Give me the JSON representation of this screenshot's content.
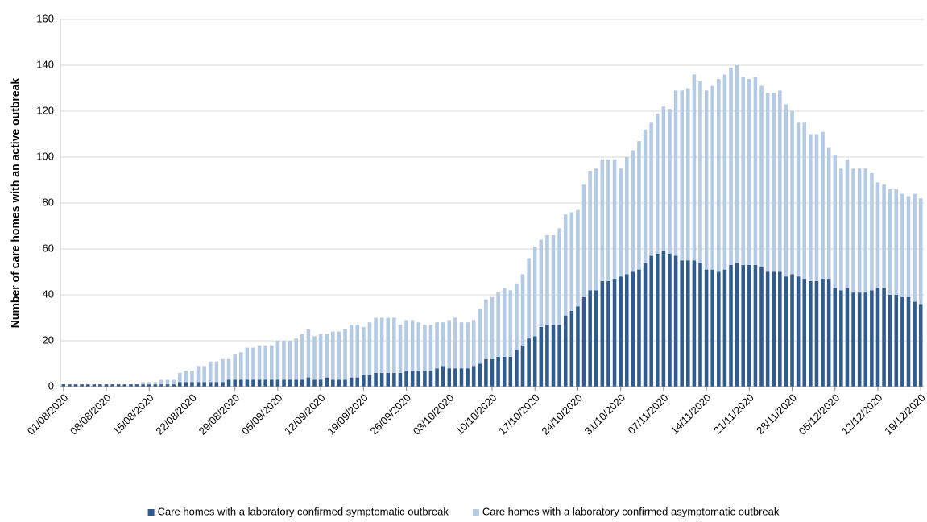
{
  "chart_data": {
    "type": "stacked-bar",
    "y_label": "Number of care homes with an active outbreak",
    "categories": [
      "01/08/2020",
      null,
      null,
      null,
      null,
      null,
      null,
      "08/08/2020",
      null,
      null,
      null,
      null,
      null,
      null,
      "15/08/2020",
      null,
      null,
      null,
      null,
      null,
      null,
      "22/08/2020",
      null,
      null,
      null,
      null,
      null,
      null,
      "29/08/2020",
      null,
      null,
      null,
      null,
      null,
      null,
      "05/09/2020",
      null,
      null,
      null,
      null,
      null,
      null,
      "12/09/2020",
      null,
      null,
      null,
      null,
      null,
      null,
      "19/09/2020",
      null,
      null,
      null,
      null,
      null,
      null,
      "26/09/2020",
      null,
      null,
      null,
      null,
      null,
      null,
      "03/10/2020",
      null,
      null,
      null,
      null,
      null,
      null,
      "10/10/2020",
      null,
      null,
      null,
      null,
      null,
      null,
      "17/10/2020",
      null,
      null,
      null,
      null,
      null,
      null,
      "24/10/2020",
      null,
      null,
      null,
      null,
      null,
      null,
      "31/10/2020",
      null,
      null,
      null,
      null,
      null,
      null,
      "07/11/2020",
      null,
      null,
      null,
      null,
      null,
      null,
      "14/11/2020",
      null,
      null,
      null,
      null,
      null,
      null,
      "21/11/2020",
      null,
      null,
      null,
      null,
      null,
      null,
      "28/11/2020",
      null,
      null,
      null,
      null,
      null,
      null,
      "05/12/2020",
      null,
      null,
      null,
      null,
      null,
      null,
      "12/12/2020",
      null,
      null,
      null,
      null,
      null,
      null,
      "19/12/2020"
    ],
    "series": [
      {
        "name": "Care homes with a laboratory confirmed symptomatic outbreak",
        "color": "#2f5b8e",
        "values": [
          1,
          1,
          1,
          1,
          1,
          1,
          1,
          1,
          1,
          1,
          1,
          1,
          1,
          1,
          1,
          1,
          1,
          1,
          1,
          2,
          2,
          2,
          2,
          2,
          2,
          2,
          2,
          3,
          3,
          3,
          3,
          3,
          3,
          3,
          3,
          3,
          3,
          3,
          3,
          3,
          4,
          3,
          3,
          4,
          3,
          3,
          3,
          4,
          4,
          5,
          5,
          6,
          6,
          6,
          6,
          6,
          7,
          7,
          7,
          7,
          7,
          8,
          9,
          8,
          8,
          8,
          8,
          9,
          10,
          12,
          12,
          13,
          13,
          13,
          16,
          18,
          21,
          22,
          26,
          27,
          27,
          27,
          31,
          33,
          35,
          39,
          42,
          42,
          46,
          46,
          47,
          48,
          49,
          50,
          51,
          54,
          57,
          58,
          59,
          58,
          57,
          55,
          55,
          55,
          54,
          51,
          51,
          50,
          51,
          53,
          54,
          53,
          53,
          53,
          52,
          50,
          50,
          50,
          48,
          49,
          48,
          47,
          46,
          46,
          47,
          47,
          43,
          42,
          43,
          41,
          41,
          41,
          42,
          43,
          43,
          40,
          40,
          39,
          39,
          37,
          36
        ]
      },
      {
        "name": "Care homes with a laboratory confirmed asymptomatic outbreak",
        "color": "#b5cae3",
        "values": [
          0,
          0,
          0,
          0,
          0,
          0,
          0,
          0,
          0,
          0,
          0,
          0,
          0,
          1,
          1,
          1,
          2,
          2,
          2,
          4,
          5,
          5,
          7,
          7,
          9,
          9,
          10,
          9,
          11,
          12,
          14,
          14,
          15,
          15,
          15,
          17,
          17,
          17,
          18,
          20,
          21,
          19,
          20,
          19,
          21,
          21,
          22,
          23,
          23,
          21,
          23,
          24,
          24,
          24,
          24,
          21,
          22,
          22,
          21,
          20,
          20,
          20,
          19,
          21,
          22,
          20,
          20,
          20,
          24,
          26,
          27,
          28,
          30,
          29,
          29,
          31,
          35,
          39,
          38,
          39,
          39,
          42,
          44,
          43,
          42,
          49,
          52,
          53,
          53,
          53,
          52,
          47,
          51,
          53,
          56,
          58,
          58,
          61,
          63,
          63,
          72,
          74,
          75,
          81,
          79,
          78,
          80,
          84,
          85,
          86,
          86,
          82,
          81,
          82,
          79,
          78,
          78,
          79,
          75,
          71,
          67,
          68,
          64,
          64,
          64,
          57,
          58,
          53,
          56,
          54,
          54,
          54,
          51,
          46,
          45,
          46,
          46,
          45,
          44,
          47,
          46
        ]
      }
    ],
    "ylim": [
      0,
      160
    ],
    "yticks": [
      0,
      20,
      40,
      60,
      80,
      100,
      120,
      140,
      160
    ],
    "grid": true,
    "legend": "bottom"
  }
}
